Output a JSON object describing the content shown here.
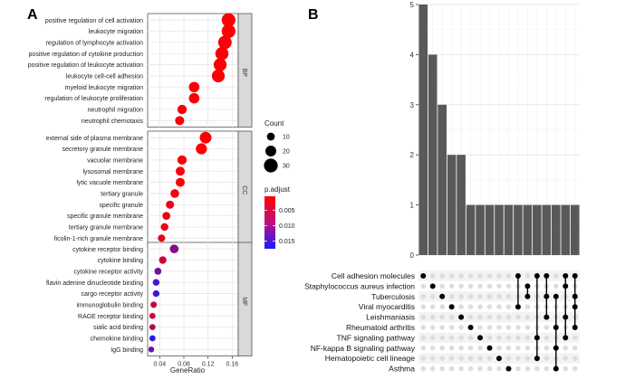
{
  "panels": {
    "a_label": "A",
    "b_label": "B"
  },
  "chart_data": [
    {
      "type": "scatter",
      "name": "GO enrichment dot plot",
      "xlabel": "GeneRatio",
      "xlim": [
        0.02,
        0.17
      ],
      "xticks": [
        0.04,
        0.08,
        0.12,
        0.16
      ],
      "xtick_labels": [
        "0.04",
        "0.08",
        "0.12",
        "0.16"
      ],
      "facets": [
        {
          "name": "BP",
          "terms": [
            {
              "label": "positive regulation of cell activation",
              "x": 0.154,
              "count": 30,
              "p_adjust": 0.0008
            },
            {
              "label": "leukocyte migration",
              "x": 0.154,
              "count": 30,
              "p_adjust": 0.0008
            },
            {
              "label": "regulation of lymphocyte activation",
              "x": 0.148,
              "count": 29,
              "p_adjust": 0.001
            },
            {
              "label": "positive regulation of cytokine production",
              "x": 0.143,
              "count": 28,
              "p_adjust": 0.001
            },
            {
              "label": "positive regulation of leukocyte activation",
              "x": 0.14,
              "count": 27,
              "p_adjust": 0.001
            },
            {
              "label": "leukocyte cell-cell adhesion",
              "x": 0.137,
              "count": 27,
              "p_adjust": 0.001
            },
            {
              "label": "myeloid leukocyte migration",
              "x": 0.097,
              "count": 19,
              "p_adjust": 0.001
            },
            {
              "label": "regulation of leukocyte proliferation",
              "x": 0.097,
              "count": 19,
              "p_adjust": 0.001
            },
            {
              "label": "neutrophil migration",
              "x": 0.077,
              "count": 15,
              "p_adjust": 0.001
            },
            {
              "label": "neutrophil chemotaxis",
              "x": 0.073,
              "count": 14,
              "p_adjust": 0.001
            }
          ]
        },
        {
          "name": "CC",
          "terms": [
            {
              "label": "external side of plasma membrane",
              "x": 0.116,
              "count": 23,
              "p_adjust": 0.0008
            },
            {
              "label": "secretory granule membrane",
              "x": 0.109,
              "count": 21,
              "p_adjust": 0.0008
            },
            {
              "label": "vacuolar membrane",
              "x": 0.077,
              "count": 15,
              "p_adjust": 0.001
            },
            {
              "label": "lysosomal membrane",
              "x": 0.074,
              "count": 14,
              "p_adjust": 0.001
            },
            {
              "label": "lytic vacuole membrane",
              "x": 0.074,
              "count": 14,
              "p_adjust": 0.001
            },
            {
              "label": "tertiary granule",
              "x": 0.065,
              "count": 13,
              "p_adjust": 0.0015
            },
            {
              "label": "specific granule",
              "x": 0.057,
              "count": 11,
              "p_adjust": 0.002
            },
            {
              "label": "specific granule membrane",
              "x": 0.051,
              "count": 10,
              "p_adjust": 0.002
            },
            {
              "label": "tertiary granule membrane",
              "x": 0.048,
              "count": 9,
              "p_adjust": 0.002
            },
            {
              "label": "ficolin-1-rich granule membrane",
              "x": 0.043,
              "count": 8,
              "p_adjust": 0.002
            }
          ]
        },
        {
          "name": "MF",
          "terms": [
            {
              "label": "cytokine receptor binding",
              "x": 0.064,
              "count": 13,
              "p_adjust": 0.0095
            },
            {
              "label": "cytokine binding",
              "x": 0.045,
              "count": 9,
              "p_adjust": 0.004
            },
            {
              "label": "cytokine receptor activity",
              "x": 0.037,
              "count": 7,
              "p_adjust": 0.011
            },
            {
              "label": "flavin adenine dinucleotide binding",
              "x": 0.034,
              "count": 6,
              "p_adjust": 0.014
            },
            {
              "label": "cargo receptor activity",
              "x": 0.034,
              "count": 6,
              "p_adjust": 0.015
            },
            {
              "label": "immunoglobulin binding",
              "x": 0.03,
              "count": 5,
              "p_adjust": 0.005
            },
            {
              "label": "RAGE receptor binding",
              "x": 0.028,
              "count": 4,
              "p_adjust": 0.004
            },
            {
              "label": "sialic acid binding",
              "x": 0.028,
              "count": 4,
              "p_adjust": 0.006
            },
            {
              "label": "chemokine binding",
              "x": 0.028,
              "count": 4,
              "p_adjust": 0.0165
            },
            {
              "label": "IgG binding",
              "x": 0.026,
              "count": 3,
              "p_adjust": 0.012
            }
          ]
        }
      ],
      "legend_count": {
        "title": "Count",
        "values": [
          10,
          20,
          30
        ],
        "labels": [
          "10",
          "20",
          "30"
        ]
      },
      "legend_padjust": {
        "title": "p.adjust",
        "ticks": [
          0.005,
          0.01,
          0.015
        ],
        "labels": [
          "0.005",
          "0.010",
          "0.015"
        ],
        "range": [
          0.0005,
          0.0175
        ],
        "low_color": "#ff0000",
        "high_color": "#1a1aff"
      }
    },
    {
      "type": "upset",
      "name": "KEGG pathway intersections",
      "ylim": [
        0,
        5
      ],
      "yticks": [
        "0",
        "1",
        "2",
        "3",
        "4",
        "5"
      ],
      "bar_values": [
        5,
        4,
        3,
        2,
        2,
        1,
        1,
        1,
        1,
        1,
        1,
        1,
        1,
        1,
        1,
        1,
        1
      ],
      "sets": [
        "Cell adhesion molecules",
        "Staphylococcus aureus infection",
        "Tuberculosis",
        "Viral myocarditis",
        "Leishmaniasis",
        "Rheumatoid arthritis",
        "TNF signaling pathway",
        "NF-kappa B signaling pathway",
        "Hematopoietic cell lineage",
        "Asthma"
      ],
      "intersections": [
        [
          0
        ],
        [
          1
        ],
        [
          2
        ],
        [
          3
        ],
        [
          4
        ],
        [
          5
        ],
        [
          6
        ],
        [
          7
        ],
        [
          8
        ],
        [
          9
        ],
        [
          0,
          3
        ],
        [
          1,
          2
        ],
        [
          0,
          6,
          8
        ],
        [
          0,
          2,
          4
        ],
        [
          2,
          5,
          7,
          9
        ],
        [
          0,
          1,
          4,
          6
        ],
        [
          0,
          2,
          3,
          5
        ]
      ],
      "bar_color": "#595959",
      "dot_on_color": "#000000",
      "dot_off_color": "#dddddd"
    }
  ]
}
